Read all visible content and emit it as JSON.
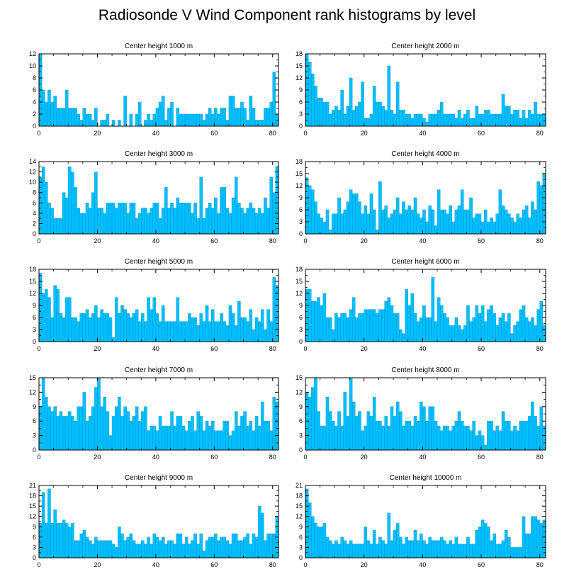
{
  "title": "Radiosonde V Wind Component rank histograms by level",
  "colors": {
    "bar": "#00bfff",
    "bar_edge": "#0090c8",
    "axis": "#000000"
  },
  "chart_data": [
    {
      "type": "bar",
      "title": "Center height 1000 m",
      "xlim": [
        0,
        82
      ],
      "ylim": [
        0,
        12
      ],
      "xticks": [
        0,
        20,
        40,
        60,
        80
      ],
      "yticks": [
        0,
        2,
        4,
        6,
        8,
        10,
        12
      ],
      "values": [
        12,
        6,
        4,
        6,
        4,
        5,
        3,
        3,
        3,
        6,
        3,
        3,
        3,
        2,
        1,
        3,
        2,
        2,
        1,
        3,
        0,
        1,
        1,
        2,
        0,
        1,
        0,
        1,
        0,
        5,
        0,
        2,
        0,
        2,
        4,
        0,
        1,
        2,
        1,
        2,
        3,
        4,
        5,
        1,
        3,
        4,
        0,
        3,
        2,
        2,
        2,
        2,
        2,
        2,
        2,
        2,
        1,
        2,
        3,
        2,
        3,
        2,
        3,
        3,
        1,
        5,
        5,
        3,
        3,
        4,
        3,
        1,
        5,
        3,
        1,
        1,
        1,
        3,
        3,
        4,
        9,
        2
      ]
    },
    {
      "type": "bar",
      "title": "Center height 2000 m",
      "xlim": [
        0,
        82
      ],
      "ylim": [
        0,
        18
      ],
      "xticks": [
        0,
        20,
        40,
        60,
        80
      ],
      "yticks": [
        0,
        3,
        6,
        9,
        12,
        15,
        18
      ],
      "values": [
        18,
        16,
        13,
        10,
        7,
        7,
        6,
        6,
        3,
        4,
        5,
        4,
        9,
        3,
        5,
        12,
        4,
        5,
        6,
        11,
        2,
        2,
        3,
        10,
        6,
        6,
        5,
        4,
        15,
        4,
        3,
        11,
        4,
        4,
        3,
        3,
        2,
        3,
        3,
        3,
        2,
        1,
        3,
        3,
        3,
        4,
        6,
        3,
        3,
        3,
        3,
        2,
        4,
        2,
        3,
        4,
        2,
        2,
        5,
        3,
        3,
        4,
        4,
        3,
        3,
        3,
        3,
        8,
        5,
        5,
        3,
        4,
        4,
        2,
        4,
        2,
        4,
        3,
        6,
        3,
        3,
        3
      ]
    },
    {
      "type": "bar",
      "title": "Center height 3000 m",
      "xlim": [
        0,
        82
      ],
      "ylim": [
        0,
        14
      ],
      "xticks": [
        0,
        20,
        40,
        60,
        80
      ],
      "yticks": [
        0,
        2,
        4,
        6,
        8,
        10,
        12,
        14
      ],
      "values": [
        11,
        13,
        10,
        6,
        5,
        3,
        3,
        3,
        8,
        7,
        13,
        12,
        9,
        5,
        4,
        4,
        6,
        5,
        8,
        12,
        5,
        5,
        4,
        6,
        6,
        6,
        5,
        6,
        6,
        6,
        4,
        6,
        6,
        3,
        4,
        5,
        5,
        4,
        5,
        6,
        6,
        3,
        5,
        9,
        5,
        6,
        5,
        7,
        6,
        6,
        6,
        6,
        4,
        6,
        3,
        11,
        3,
        5,
        6,
        5,
        7,
        4,
        9,
        9,
        5,
        4,
        7,
        11,
        6,
        5,
        4,
        5,
        6,
        5,
        4,
        5,
        4,
        7,
        5,
        11,
        8,
        13
      ]
    },
    {
      "type": "bar",
      "title": "Center height 4000 m",
      "xlim": [
        0,
        82
      ],
      "ylim": [
        0,
        18
      ],
      "xticks": [
        0,
        20,
        40,
        60,
        80
      ],
      "yticks": [
        0,
        3,
        6,
        9,
        12,
        15,
        18
      ],
      "values": [
        14,
        12,
        11,
        8,
        5,
        4,
        3,
        6,
        1,
        5,
        5,
        9,
        5,
        6,
        8,
        11,
        10,
        10,
        8,
        5,
        7,
        5,
        10,
        6,
        1,
        13,
        6,
        7,
        4,
        5,
        6,
        9,
        5,
        8,
        6,
        7,
        6,
        9,
        5,
        4,
        6,
        3,
        7,
        6,
        2,
        11,
        6,
        6,
        5,
        7,
        3,
        6,
        7,
        11,
        6,
        6,
        9,
        4,
        5,
        5,
        3,
        6,
        3,
        4,
        3,
        5,
        11,
        7,
        6,
        5,
        4,
        3,
        5,
        4,
        6,
        7,
        4,
        8,
        6,
        13,
        12,
        15
      ]
    },
    {
      "type": "bar",
      "title": "Center height 5000 m",
      "xlim": [
        0,
        82
      ],
      "ylim": [
        0,
        18
      ],
      "xticks": [
        0,
        20,
        40,
        60,
        80
      ],
      "yticks": [
        0,
        3,
        6,
        9,
        12,
        15,
        18
      ],
      "values": [
        17,
        12,
        13,
        11,
        6,
        14,
        13,
        7,
        6,
        11,
        11,
        6,
        6,
        5,
        7,
        7,
        8,
        6,
        7,
        9,
        6,
        8,
        7,
        7,
        6,
        1,
        11,
        7,
        9,
        8,
        7,
        6,
        7,
        8,
        5,
        7,
        5,
        11,
        8,
        11,
        7,
        5,
        9,
        5,
        5,
        5,
        5,
        11,
        5,
        5,
        5,
        7,
        6,
        6,
        4,
        7,
        5,
        9,
        5,
        8,
        5,
        5,
        7,
        5,
        4,
        9,
        7,
        4,
        10,
        6,
        6,
        5,
        8,
        3,
        6,
        5,
        8,
        3,
        8,
        5,
        16,
        14
      ]
    },
    {
      "type": "bar",
      "title": "Center height 6000 m",
      "xlim": [
        0,
        82
      ],
      "ylim": [
        0,
        18
      ],
      "xticks": [
        0,
        20,
        40,
        60,
        80
      ],
      "yticks": [
        0,
        3,
        6,
        9,
        12,
        15,
        18
      ],
      "values": [
        13,
        13,
        10,
        10,
        11,
        9,
        12,
        6,
        6,
        3,
        7,
        6,
        7,
        7,
        6,
        8,
        11,
        6,
        7,
        7,
        8,
        8,
        8,
        8,
        7,
        8,
        8,
        10,
        11,
        9,
        7,
        7,
        3,
        2,
        13,
        9,
        12,
        7,
        5,
        6,
        9,
        6,
        6,
        16,
        5,
        11,
        9,
        7,
        6,
        4,
        4,
        6,
        4,
        3,
        4,
        9,
        5,
        6,
        9,
        7,
        9,
        5,
        8,
        9,
        7,
        4,
        6,
        7,
        5,
        7,
        2,
        4,
        5,
        8,
        9,
        6,
        5,
        6,
        4,
        8,
        10,
        4
      ]
    },
    {
      "type": "bar",
      "title": "Center height 7000 m",
      "xlim": [
        0,
        82
      ],
      "ylim": [
        0,
        15
      ],
      "xticks": [
        0,
        20,
        40,
        60,
        80
      ],
      "yticks": [
        0,
        3,
        6,
        9,
        12,
        15
      ],
      "values": [
        9,
        15,
        11,
        9,
        8,
        9,
        7,
        8,
        7,
        7,
        8,
        7,
        6,
        9,
        9,
        12,
        6,
        7,
        9,
        13,
        15,
        9,
        11,
        8,
        3,
        7,
        9,
        11,
        7,
        9,
        8,
        6,
        7,
        9,
        6,
        8,
        9,
        4,
        5,
        5,
        4,
        7,
        5,
        5,
        5,
        8,
        5,
        7,
        7,
        5,
        4,
        6,
        7,
        4,
        8,
        7,
        4,
        6,
        5,
        6,
        4,
        4,
        4,
        6,
        6,
        3,
        4,
        8,
        5,
        7,
        8,
        5,
        6,
        4,
        7,
        5,
        10,
        6,
        6,
        4,
        11,
        10
      ]
    },
    {
      "type": "bar",
      "title": "Center height 8000 m",
      "xlim": [
        0,
        82
      ],
      "ylim": [
        0,
        15
      ],
      "xticks": [
        0,
        20,
        40,
        60,
        80
      ],
      "yticks": [
        0,
        3,
        6,
        9,
        12,
        15
      ],
      "values": [
        12,
        11,
        13,
        15,
        8,
        5,
        5,
        11,
        8,
        6,
        5,
        8,
        5,
        12,
        7,
        15,
        10,
        7,
        8,
        4,
        5,
        8,
        7,
        11,
        6,
        6,
        5,
        7,
        5,
        9,
        7,
        10,
        8,
        5,
        6,
        6,
        5,
        7,
        6,
        10,
        9,
        6,
        9,
        9,
        6,
        5,
        4,
        5,
        5,
        4,
        5,
        6,
        8,
        6,
        5,
        5,
        4,
        6,
        3,
        4,
        3,
        1,
        6,
        6,
        4,
        5,
        4,
        8,
        6,
        6,
        4,
        5,
        4,
        6,
        6,
        6,
        7,
        10,
        7,
        5,
        9,
        5
      ]
    },
    {
      "type": "bar",
      "title": "Center height 9000 m",
      "xlim": [
        0,
        82
      ],
      "ylim": [
        0,
        21
      ],
      "xticks": [
        0,
        20,
        40,
        60,
        80
      ],
      "yticks": [
        0,
        3,
        6,
        9,
        12,
        15,
        18,
        21
      ],
      "values": [
        10,
        19,
        10,
        20,
        10,
        14,
        10,
        10,
        11,
        10,
        9,
        10,
        5,
        5,
        7,
        8,
        6,
        5,
        4,
        6,
        5,
        5,
        5,
        5,
        5,
        4,
        3,
        9,
        7,
        5,
        6,
        7,
        5,
        4,
        4,
        5,
        4,
        6,
        4,
        7,
        6,
        5,
        6,
        4,
        5,
        5,
        4,
        7,
        7,
        4,
        6,
        4,
        5,
        7,
        4,
        7,
        2,
        5,
        6,
        6,
        7,
        5,
        6,
        6,
        5,
        4,
        7,
        7,
        5,
        5,
        6,
        7,
        4,
        7,
        6,
        15,
        13,
        5,
        7,
        7,
        7,
        12
      ]
    },
    {
      "type": "bar",
      "title": "Center height 10000 m",
      "xlim": [
        0,
        82
      ],
      "ylim": [
        0,
        21
      ],
      "xticks": [
        0,
        20,
        40,
        60,
        80
      ],
      "yticks": [
        0,
        3,
        6,
        9,
        12,
        15,
        18,
        21
      ],
      "values": [
        20,
        16,
        12,
        10,
        9,
        9,
        10,
        6,
        5,
        4,
        5,
        4,
        6,
        5,
        4,
        5,
        4,
        4,
        4,
        4,
        9,
        5,
        4,
        8,
        4,
        6,
        5,
        4,
        13,
        5,
        8,
        10,
        6,
        4,
        6,
        5,
        5,
        8,
        5,
        7,
        5,
        4,
        6,
        5,
        5,
        5,
        6,
        5,
        4,
        5,
        4,
        6,
        4,
        4,
        4,
        6,
        4,
        4,
        8,
        9,
        11,
        10,
        9,
        5,
        7,
        4,
        4,
        5,
        8,
        6,
        3,
        3,
        3,
        3,
        12,
        7,
        7,
        12,
        12,
        11,
        10,
        11
      ]
    }
  ]
}
